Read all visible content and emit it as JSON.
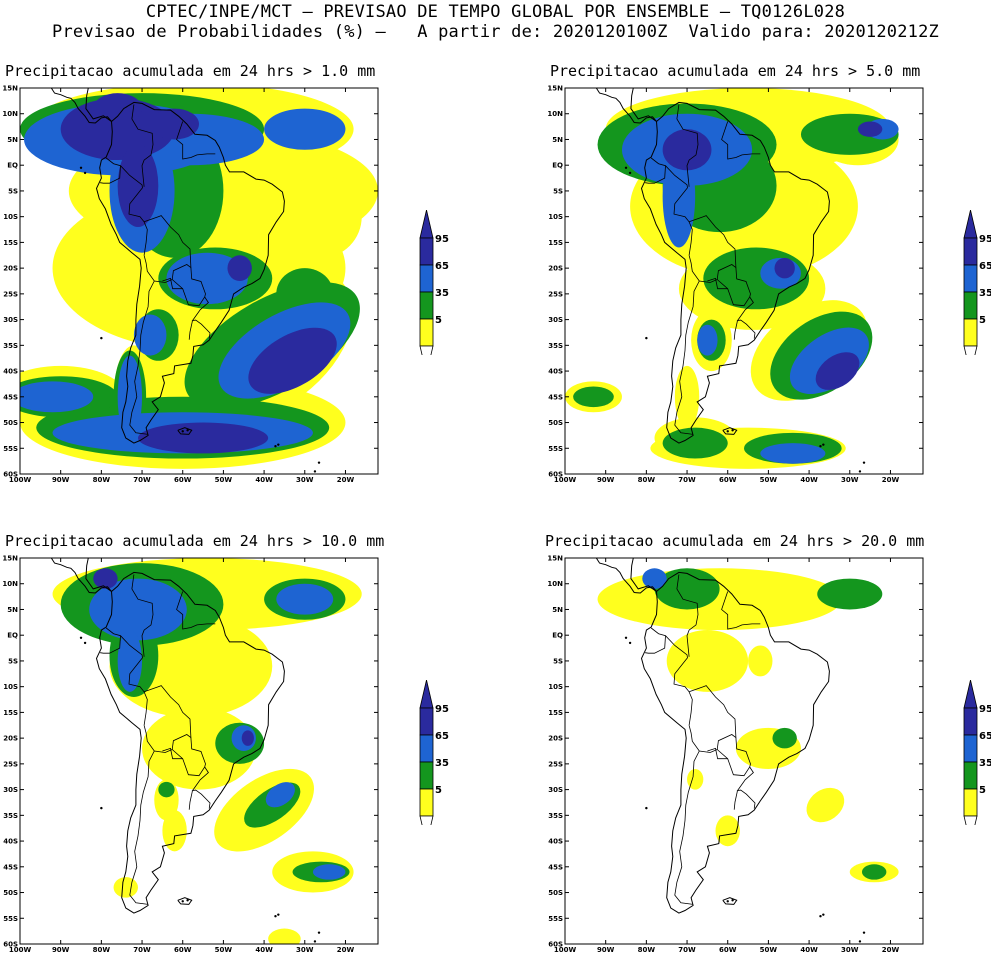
{
  "header": {
    "line1": "CPTEC/INPE/MCT – PREVISAO DE TEMPO GLOBAL POR ENSEMBLE – TQ0126L028",
    "line2": "Previsao de Probabilidades (%) –   A partir de: 2020120100Z  Valido para: 2020120212Z"
  },
  "axes": {
    "lat_labels": [
      "15N",
      "10N",
      "5N",
      "EQ",
      "5S",
      "10S",
      "15S",
      "20S",
      "25S",
      "30S",
      "35S",
      "40S",
      "45S",
      "50S",
      "55S",
      "60S"
    ],
    "lon_labels": [
      "100W",
      "90W",
      "80W",
      "70W",
      "60W",
      "50W",
      "40W",
      "30W",
      "20W"
    ]
  },
  "colorbar": {
    "levels": [
      "95",
      "65",
      "35",
      "5"
    ],
    "colors": {
      "p95": "#2a2a9e",
      "p65": "#1e64d2",
      "p35": "#14961e",
      "p5": "#ffff1e"
    }
  },
  "panels": [
    {
      "title": "Precipitacao acumulada em 24 hrs > 1.0 mm",
      "threshold_mm": 1.0
    },
    {
      "title": "Precipitacao acumulada em 24 hrs > 5.0 mm",
      "threshold_mm": 5.0
    },
    {
      "title": "Precipitacao acumulada em 24 hrs > 10.0 mm",
      "threshold_mm": 10.0
    },
    {
      "title": "Precipitacao acumulada em 24 hrs > 20.0 mm",
      "threshold_mm": 20.0
    }
  ]
}
